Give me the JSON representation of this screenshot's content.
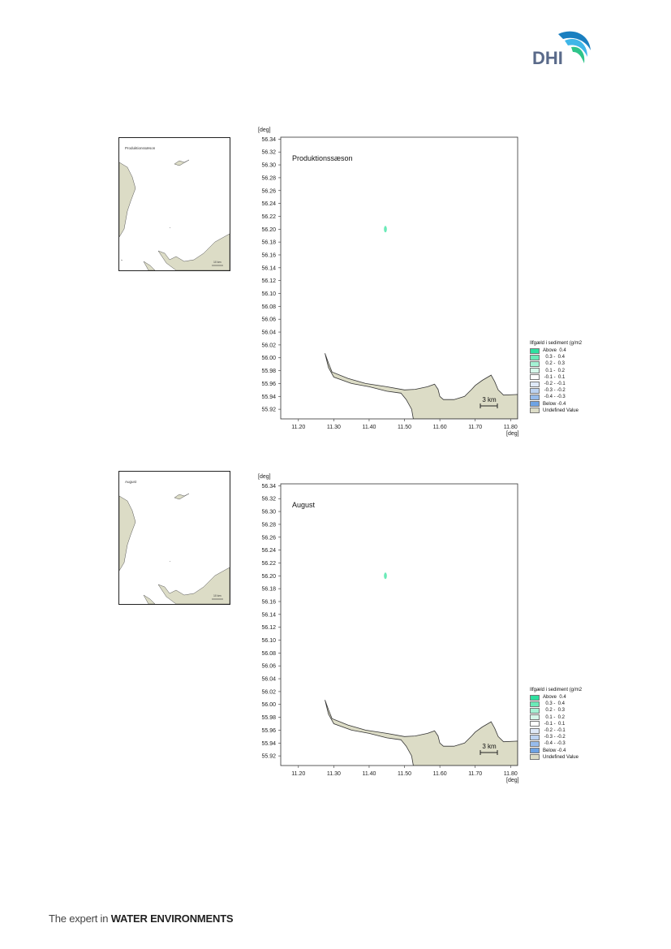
{
  "header": {
    "logo_text": "DHI"
  },
  "footer": {
    "prefix": "The expert in ",
    "emphasis": "WATER ENVIRONMENTS"
  },
  "maps": [
    {
      "inset_label": "Produktionssæson",
      "inset_scale": "10 km",
      "title": "Produktionssæson",
      "unit_label_y": "[deg]",
      "unit_label_x": "[deg]",
      "y_ticks": [
        "56.34",
        "56.32",
        "56.30",
        "56.28",
        "56.26",
        "56.24",
        "56.22",
        "56.20",
        "56.18",
        "56.16",
        "56.14",
        "56.12",
        "56.10",
        "56.08",
        "56.06",
        "56.04",
        "56.02",
        "56.00",
        "55.98",
        "55.96",
        "55.94",
        "55.92"
      ],
      "x_ticks": [
        "11.20",
        "11.30",
        "11.40",
        "11.50",
        "11.60",
        "11.70",
        "11.80"
      ],
      "scale_bar": "3 km",
      "legend_title": "Ilfgæld i sediment (g/m2",
      "legend": [
        {
          "label": "Above  0.4",
          "color": "#2fe0a0"
        },
        {
          "label": "  0.3 -  0.4",
          "color": "#6beab8"
        },
        {
          "label": "  0.2 -  0.3",
          "color": "#a5f2d4"
        },
        {
          "label": "  0.1 -  0.2",
          "color": "#d6f8ea"
        },
        {
          "label": " -0.1 -  0.1",
          "color": "#ffffff"
        },
        {
          "label": " -0.2 - -0.1",
          "color": "#dfe9f8"
        },
        {
          "label": " -0.3 - -0.2",
          "color": "#bcd3f2"
        },
        {
          "label": " -0.4 - -0.3",
          "color": "#97bcec"
        },
        {
          "label": "Below -0.4",
          "color": "#6ea3e4"
        },
        {
          "label": "Undefined Value",
          "color": "#dcdcc6"
        }
      ]
    },
    {
      "inset_label": "August",
      "inset_scale": "10 km",
      "title": "August",
      "unit_label_y": "[deg]",
      "unit_label_x": "[deg]",
      "y_ticks": [
        "56.34",
        "56.32",
        "56.30",
        "56.28",
        "56.26",
        "56.24",
        "56.22",
        "56.20",
        "56.18",
        "56.16",
        "56.14",
        "56.12",
        "56.10",
        "56.08",
        "56.06",
        "56.04",
        "56.02",
        "56.00",
        "55.98",
        "55.96",
        "55.94",
        "55.92"
      ],
      "x_ticks": [
        "11.20",
        "11.30",
        "11.40",
        "11.50",
        "11.60",
        "11.70",
        "11.80"
      ],
      "scale_bar": "3 km",
      "legend_title": "Ilfgæld i sediment (g/m2",
      "legend": [
        {
          "label": "Above  0.4",
          "color": "#2fe0a0"
        },
        {
          "label": "  0.3 -  0.4",
          "color": "#6beab8"
        },
        {
          "label": "  0.2 -  0.3",
          "color": "#a5f2d4"
        },
        {
          "label": "  0.1 -  0.2",
          "color": "#d6f8ea"
        },
        {
          "label": " -0.1 -  0.1",
          "color": "#ffffff"
        },
        {
          "label": " -0.2 - -0.1",
          "color": "#dfe9f8"
        },
        {
          "label": " -0.3 - -0.2",
          "color": "#bcd3f2"
        },
        {
          "label": " -0.4 - -0.3",
          "color": "#97bcec"
        },
        {
          "label": "Below -0.4",
          "color": "#6ea3e4"
        },
        {
          "label": "Undefined Value",
          "color": "#dcdcc6"
        }
      ]
    }
  ],
  "colors": {
    "land": "#dcdcc6",
    "land_stroke": "#333333",
    "plume": "#6beab8",
    "logo_text": "#5a6a8a",
    "logo_wave_1": "#1a7fc0",
    "logo_wave_2": "#3fb6e8",
    "logo_wave_3": "#2fc48a"
  }
}
